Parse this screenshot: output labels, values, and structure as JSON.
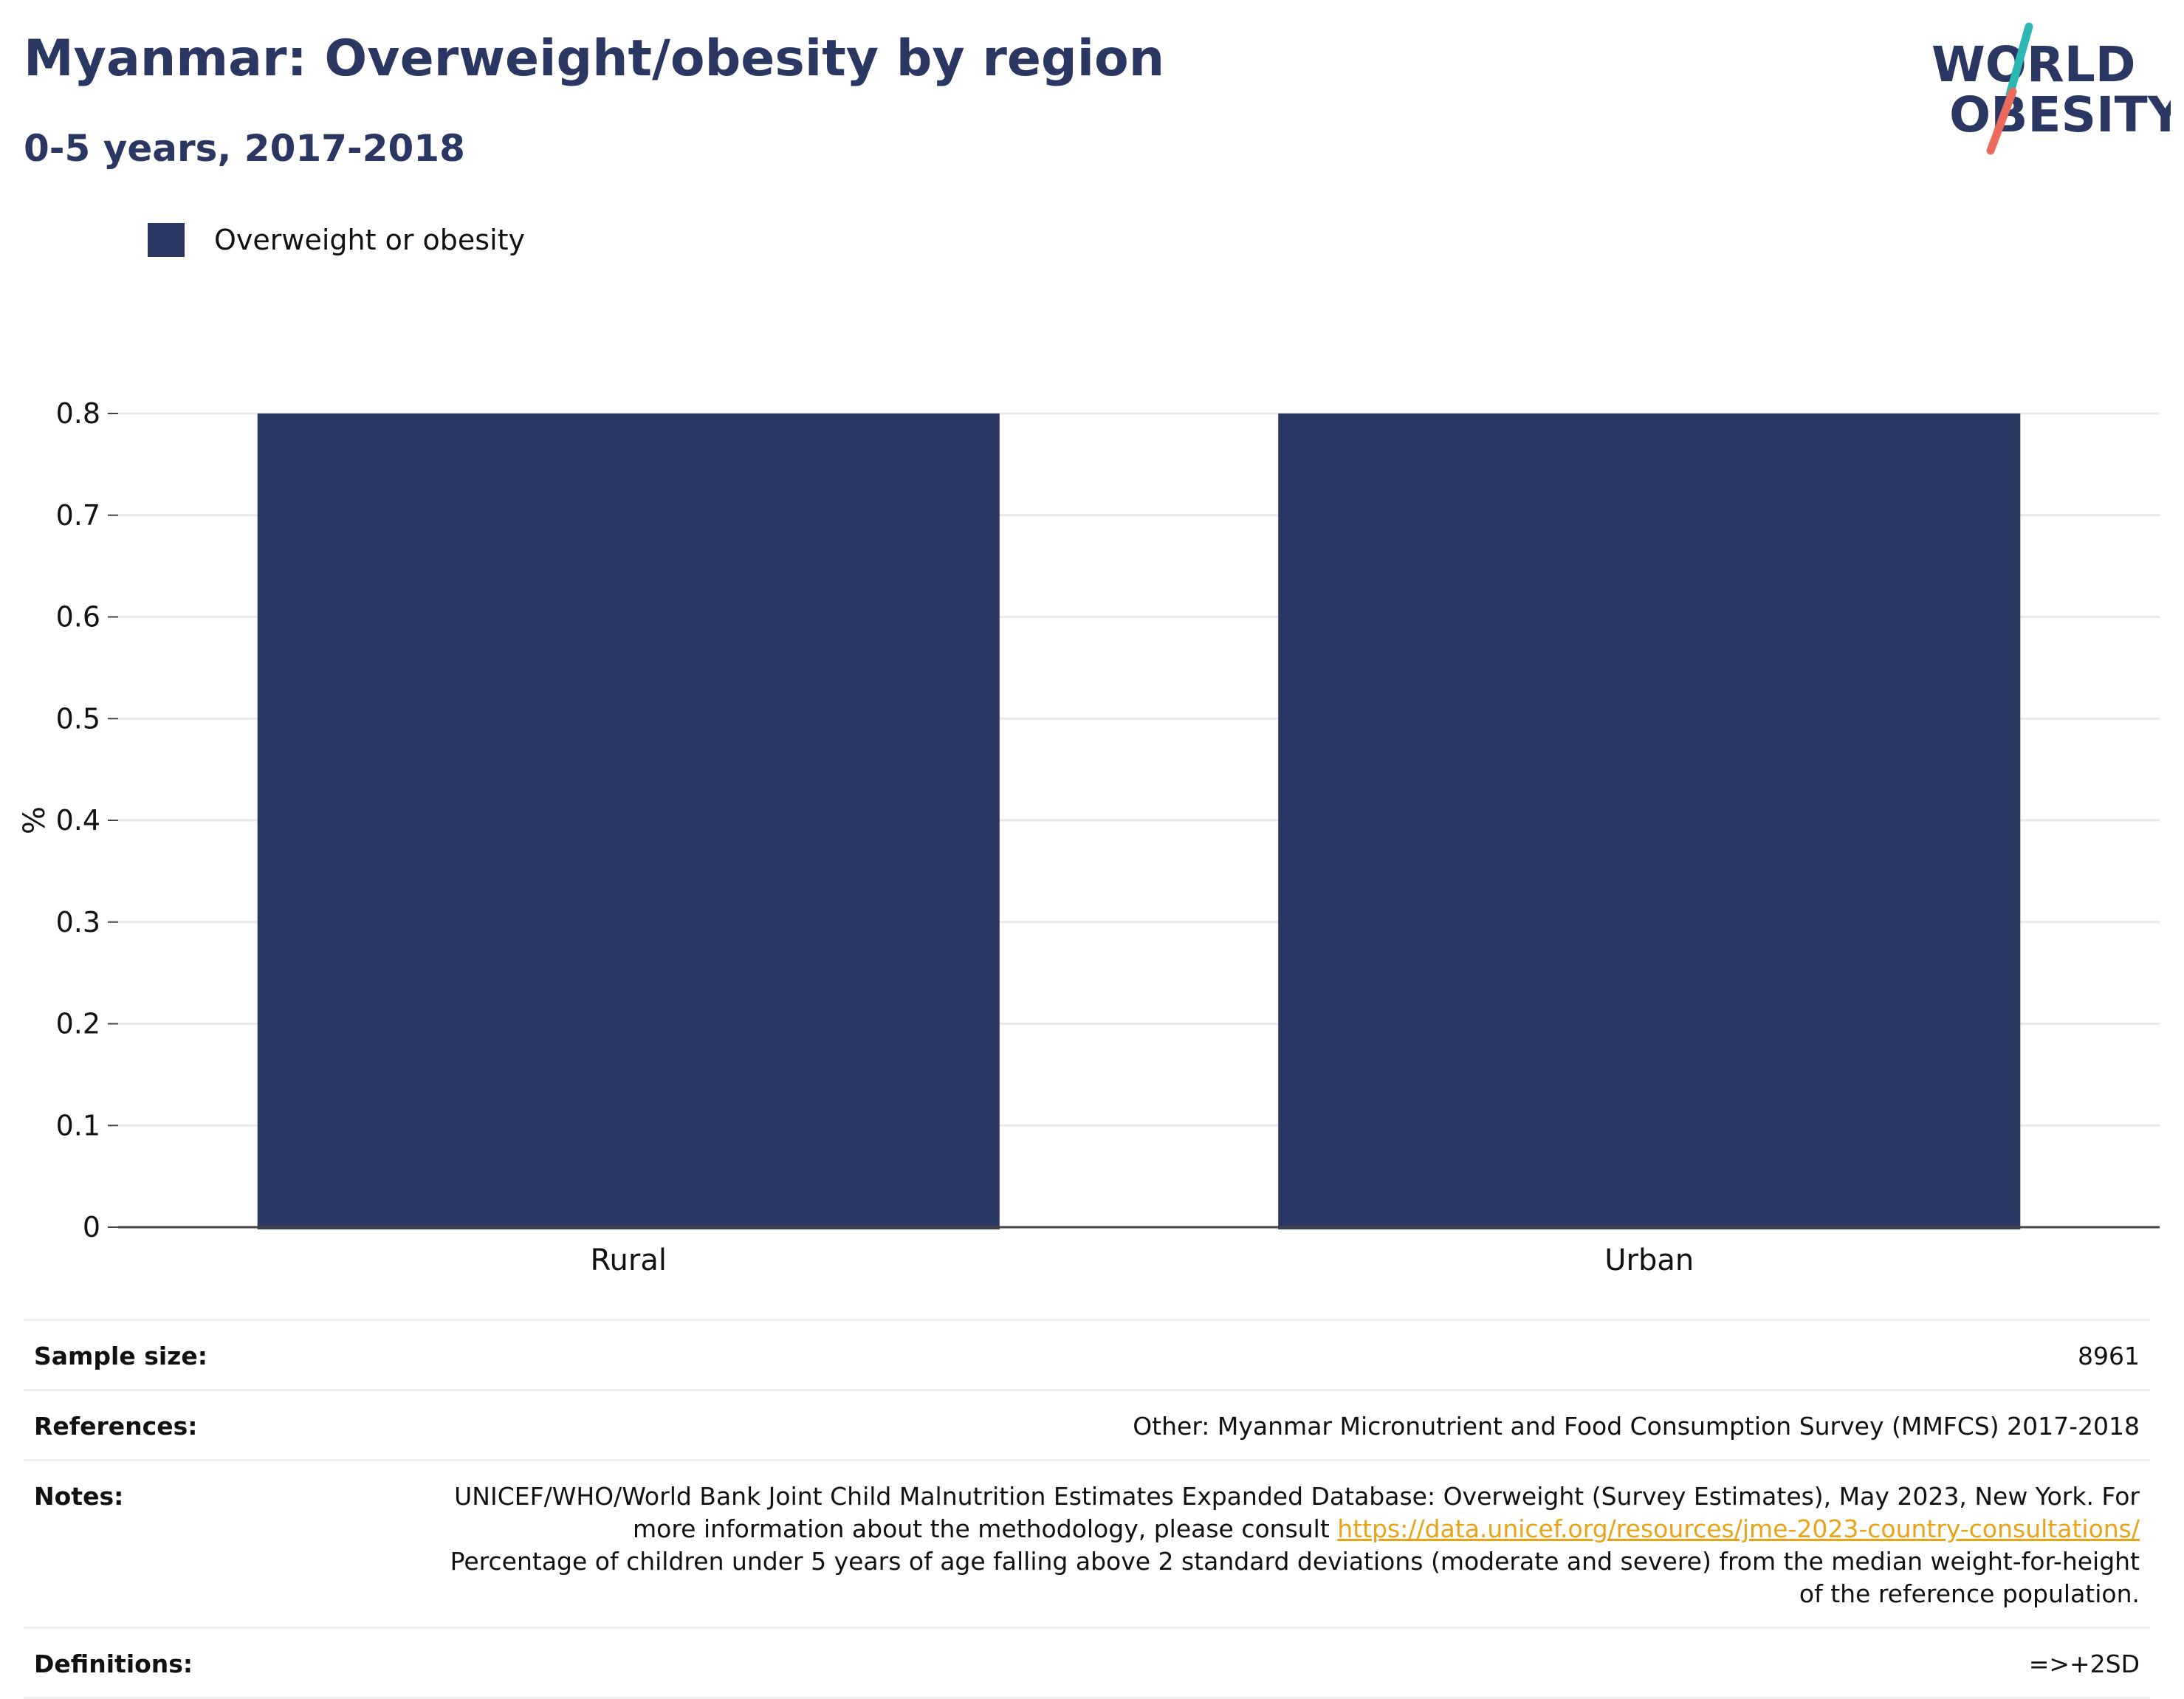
{
  "header": {
    "title": "Myanmar: Overweight/obesity by region",
    "subtitle": "0-5 years, 2017-2018"
  },
  "logo": {
    "line1": "WORLD",
    "line2": "OBESITY",
    "colors": {
      "text": "#2b3763",
      "slash_top": "#2bb7b3",
      "slash_bottom": "#ec6a5c"
    }
  },
  "chart_data": {
    "type": "bar",
    "categories": [
      "Rural",
      "Urban"
    ],
    "series": [
      {
        "name": "Overweight or obesity",
        "values": [
          0.8,
          0.8
        ],
        "color": "#2b3763"
      }
    ],
    "ylabel": "%",
    "ylim": [
      0,
      0.8
    ],
    "yticks": [
      "0",
      "0.1",
      "0.2",
      "0.3",
      "0.4",
      "0.5",
      "0.6",
      "0.7",
      "0.8"
    ],
    "grid": true,
    "legend_position": "top-left"
  },
  "info": {
    "sample_size_label": "Sample size:",
    "sample_size_value": "8961",
    "references_label": "References:",
    "references_value": "Other: Myanmar Micronutrient and Food Consumption Survey (MMFCS) 2017-2018",
    "notes_label": "Notes:",
    "notes_text_1": "UNICEF/WHO/World Bank Joint Child Malnutrition Estimates Expanded Database: Overweight (Survey Estimates), May 2023, New York. For more information about the methodology, please consult",
    "notes_link": "https://data.unicef.org/resources/jme-2023-country-consultations/",
    "notes_text_2": "Percentage of children under 5 years of age falling above 2 standard deviations (moderate and severe) from the median weight-for-height of the reference population.",
    "definitions_label": "Definitions:",
    "definitions_value": "=>+2SD"
  }
}
